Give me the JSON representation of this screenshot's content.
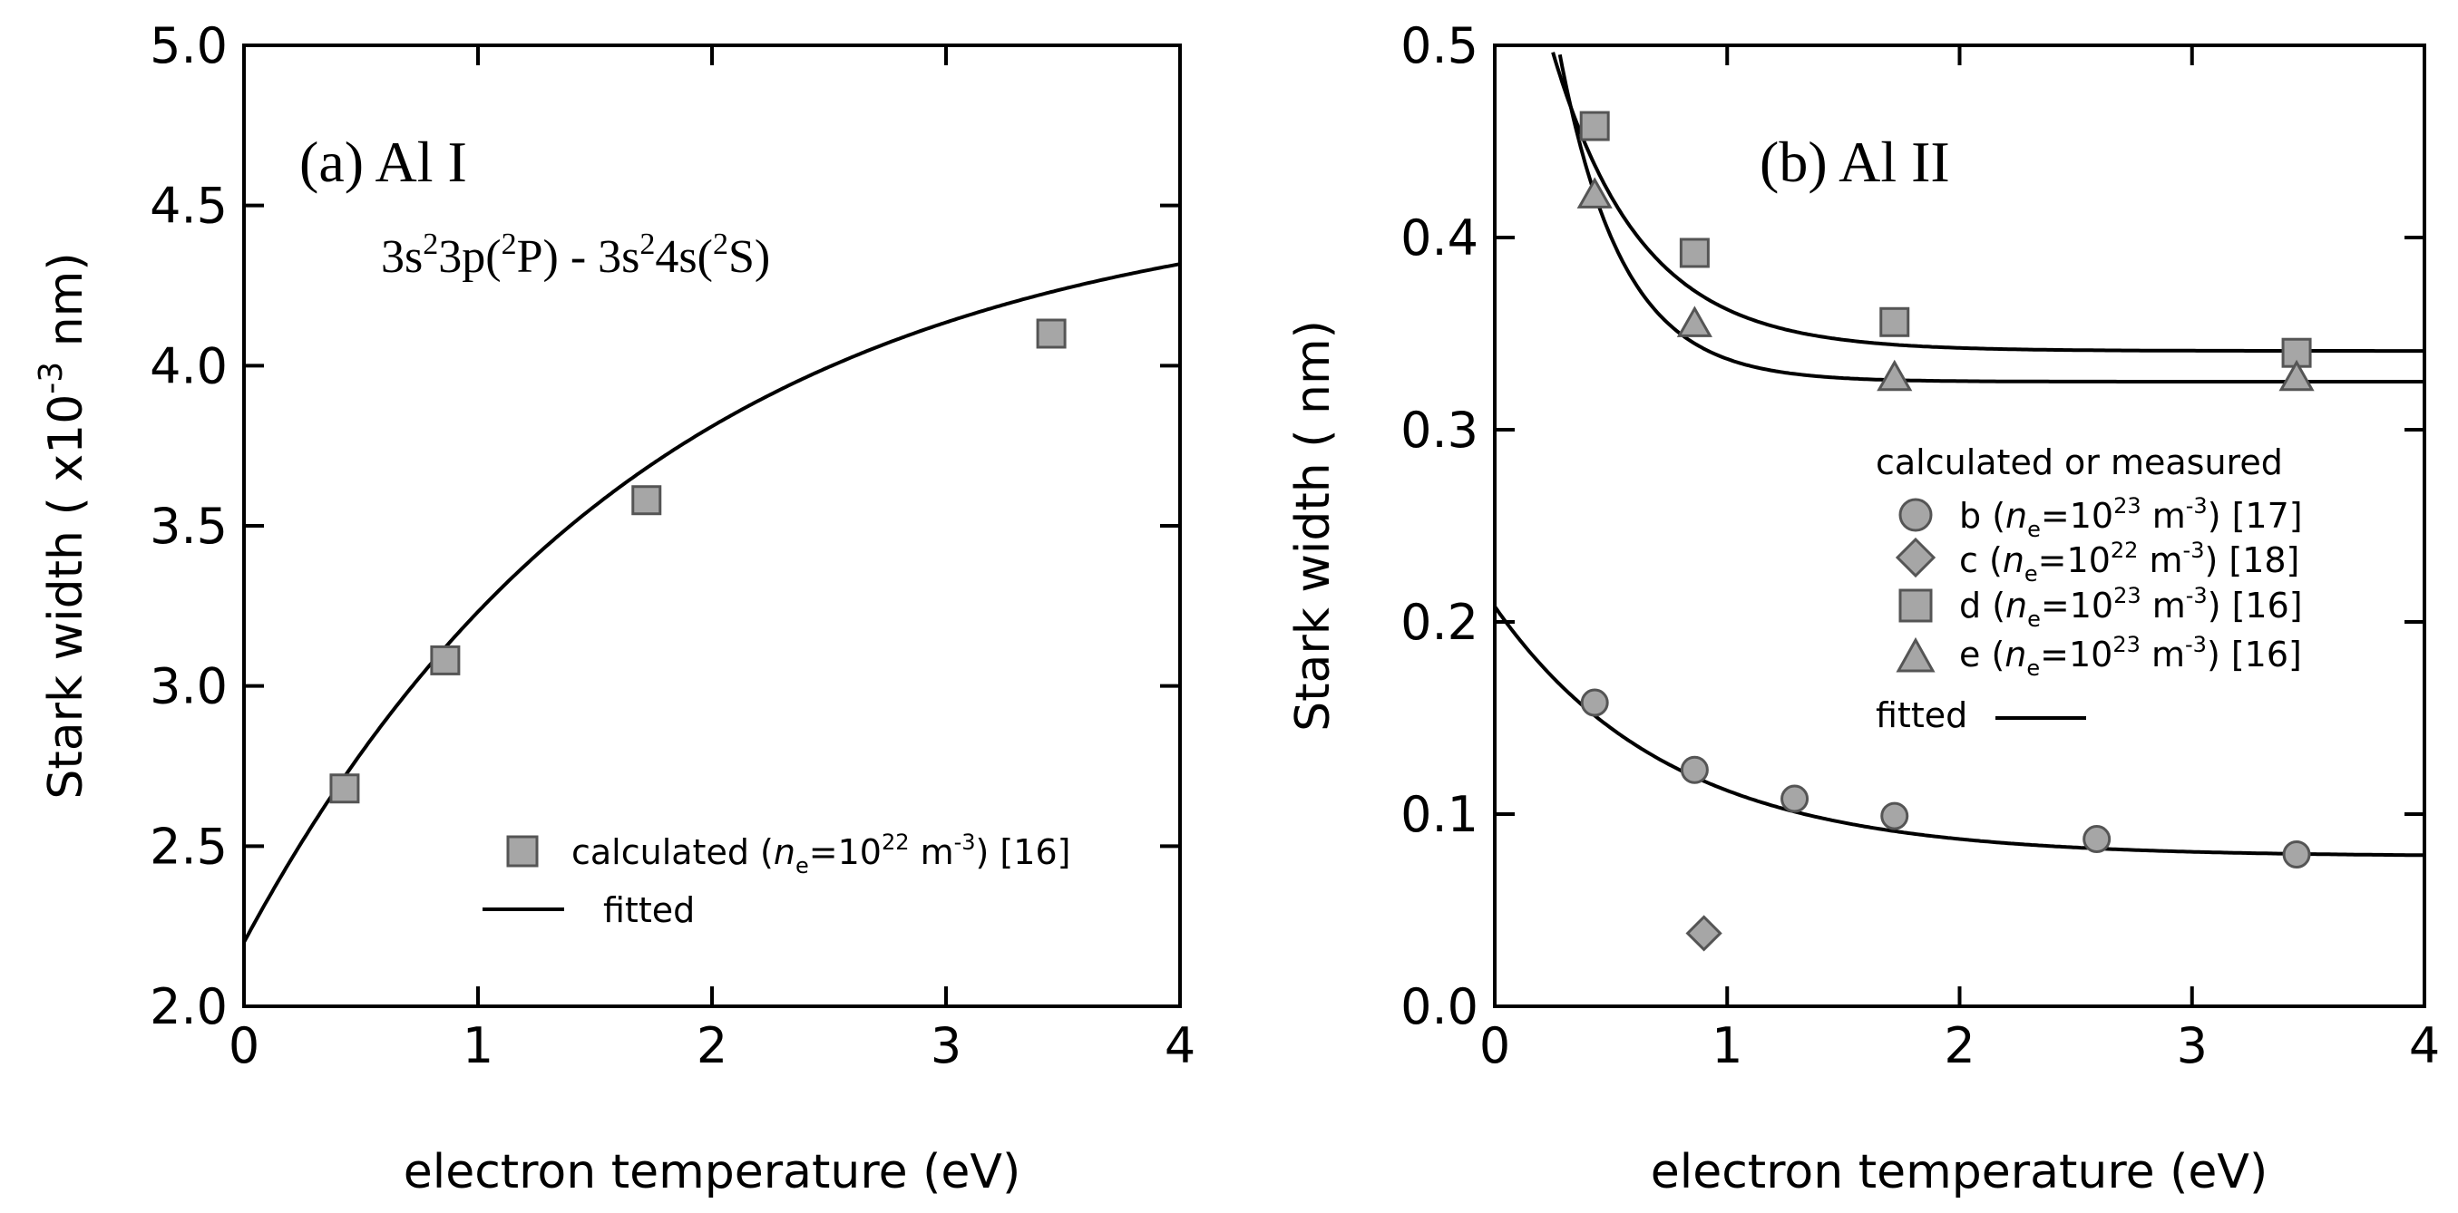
{
  "chart_data": [
    {
      "type": "scatter",
      "panel": "a",
      "title": "(a) Al I",
      "subtitle": {
        "p1": "3s",
        "p2": "2",
        "p3": "3p(",
        "p4": "2",
        "p5": "P) - 3s",
        "p6": "2",
        "p7": "4s(",
        "p8": "2",
        "p9": "S)"
      },
      "xlabel": "electron temperature (eV)",
      "ylabel": {
        "main": "Stark width ( x10",
        "exp": "-3",
        "unit": " nm)"
      },
      "xlim": [
        0,
        4
      ],
      "ylim": [
        2.0,
        5.0
      ],
      "xticks": [
        "0",
        "1",
        "2",
        "3",
        "4"
      ],
      "yticks": [
        "2.0",
        "2.5",
        "3.0",
        "3.5",
        "4.0",
        "4.5",
        "5.0"
      ],
      "series": [
        {
          "name": "calculated",
          "marker": "square",
          "x": [
            0.43,
            0.86,
            1.72,
            3.45
          ],
          "y": [
            2.68,
            3.08,
            3.58,
            4.1
          ]
        }
      ],
      "fit": {
        "name": "fitted",
        "form": "a - b*exp(-x/t)",
        "a": 4.55,
        "b": 2.35,
        "t": 1.73
      },
      "legend": {
        "marker_label": {
          "pre": "calculated (",
          "n": "n",
          "e": "e",
          "eq": "=10",
          "exp": "22",
          "unit": " m",
          "uexp": "-3",
          "post": ") [16]"
        },
        "fit_label": "fitted"
      }
    },
    {
      "type": "scatter",
      "panel": "b",
      "title": "(b) Al II",
      "xlabel": "electron temperature (eV)",
      "ylabel": {
        "main": "Stark width ( nm)"
      },
      "xlim": [
        0,
        4
      ],
      "ylim": [
        0.0,
        0.5
      ],
      "xticks": [
        "0",
        "1",
        "2",
        "3",
        "4"
      ],
      "yticks": [
        "0.0",
        "0.1",
        "0.2",
        "0.3",
        "0.4",
        "0.5"
      ],
      "series": [
        {
          "name": "b",
          "marker": "circle",
          "x": [
            0.43,
            0.86,
            1.29,
            1.72,
            2.59,
            3.45
          ],
          "y": [
            0.158,
            0.123,
            0.108,
            0.099,
            0.087,
            0.079
          ]
        },
        {
          "name": "c",
          "marker": "diamond",
          "x": [
            0.9
          ],
          "y": [
            0.038
          ]
        },
        {
          "name": "d",
          "marker": "square",
          "x": [
            0.43,
            0.86,
            1.72,
            3.45
          ],
          "y": [
            0.458,
            0.392,
            0.356,
            0.34
          ]
        },
        {
          "name": "e",
          "marker": "triangle",
          "x": [
            0.43,
            0.86,
            1.72,
            3.45
          ],
          "y": [
            0.422,
            0.355,
            0.327,
            0.327
          ]
        }
      ],
      "fits": [
        {
          "series": "b",
          "form": "a + b*exp(-x/t)",
          "a": 0.078,
          "b": 0.13,
          "t": 0.75
        },
        {
          "series": "d",
          "form": "a + b*exp(-x/t)",
          "a": 0.341,
          "b": 0.3,
          "t": 0.38
        },
        {
          "series": "e",
          "form": "a + b*exp(-x/t)",
          "a": 0.325,
          "b": 0.48,
          "t": 0.27
        }
      ],
      "legend": {
        "heading": "calculated or measured",
        "items": [
          {
            "letter": "b",
            "exp": "23",
            "ref": "[17]"
          },
          {
            "letter": "c",
            "exp": "22",
            "ref": "[18]"
          },
          {
            "letter": "d",
            "exp": "23",
            "ref": "[16]"
          },
          {
            "letter": "e",
            "exp": "23",
            "ref": "[16]"
          }
        ],
        "n": "n",
        "e": "e",
        "eq": "=10",
        "unit": " m",
        "uexp": "-3",
        "fit_label": "fitted"
      }
    }
  ]
}
